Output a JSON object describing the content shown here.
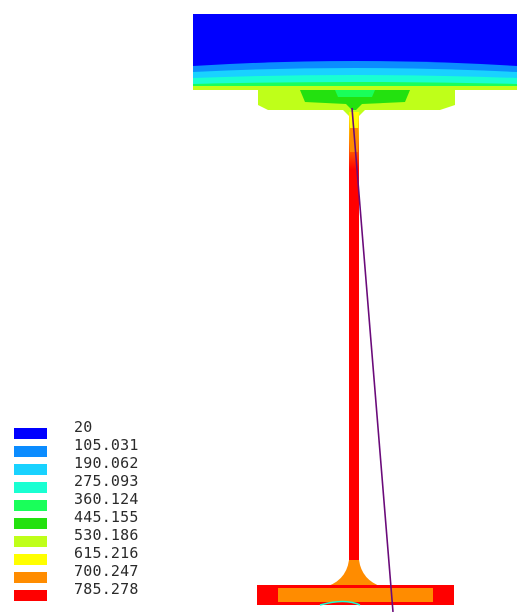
{
  "legend": {
    "items": [
      {
        "label": "20",
        "color": "#0000ff"
      },
      {
        "label": "105.031",
        "color": "#0b8cff"
      },
      {
        "label": "190.062",
        "color": "#19d2ff"
      },
      {
        "label": "275.093",
        "color": "#19ffd2"
      },
      {
        "label": "360.124",
        "color": "#19ff5a"
      },
      {
        "label": "445.155",
        "color": "#23e10f"
      },
      {
        "label": "530.186",
        "color": "#bfff19"
      },
      {
        "label": "615.216",
        "color": "#ffff00"
      },
      {
        "label": "700.247",
        "color": "#ff8c00"
      },
      {
        "label": "785.278",
        "color": "#ff0000"
      }
    ]
  },
  "colors": {
    "crack_line": "#6a0a7a",
    "web": "#ff0000",
    "top_flange_base": "#0000ff",
    "bottom_flange_base": "#ff0000"
  }
}
